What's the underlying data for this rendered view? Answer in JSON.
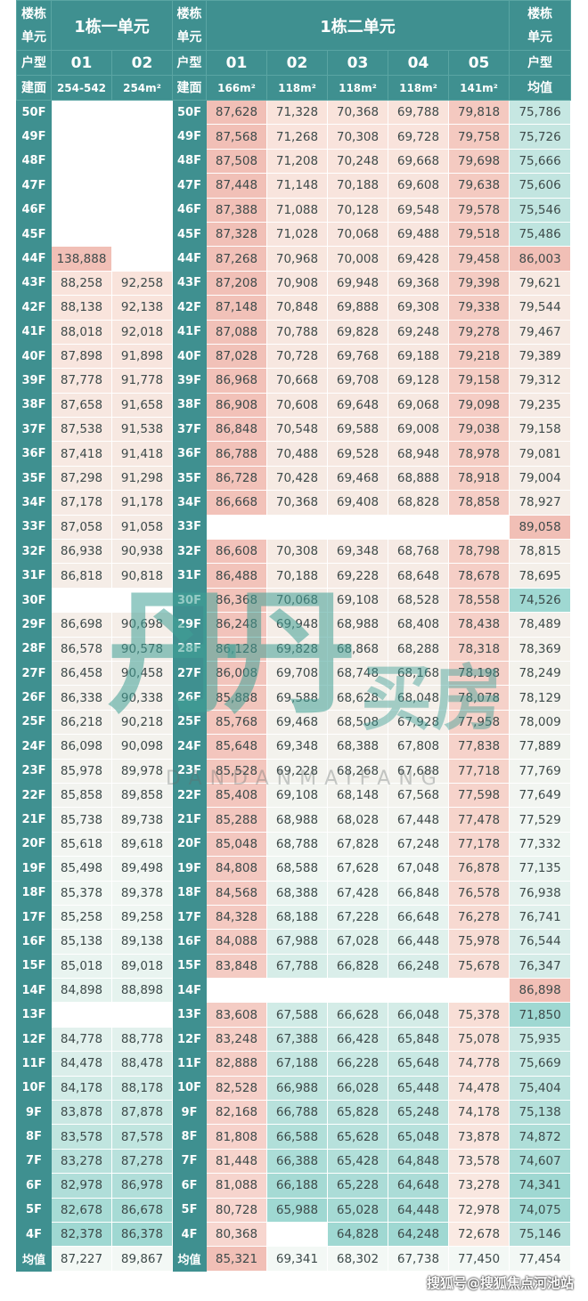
{
  "header": {
    "corner_label_top": "楼栋",
    "corner_label_bottom": "单元",
    "unit1_title": "1栋一单元",
    "unit2_title": "1栋二单元",
    "type_label": "户型",
    "area_label": "建面",
    "avg_label": "均值",
    "unit1_types": [
      "01",
      "02"
    ],
    "unit1_areas": [
      "254-542",
      "254m²"
    ],
    "unit2_types": [
      "01",
      "02",
      "03",
      "04",
      "05"
    ],
    "unit2_areas": [
      "166m²",
      "118m²",
      "118m²",
      "118m²",
      "141m²"
    ]
  },
  "colors": {
    "header": "#3f9090",
    "teal": "#9fd8d2",
    "light": "#f1f7f3",
    "pink": "#f1bfb6"
  },
  "rows": [
    {
      "floor": "50F",
      "u1": [
        null,
        null
      ],
      "u2": [
        "87,628",
        "71,328",
        "70,368",
        "69,788",
        "79,818"
      ],
      "avg": "75,786"
    },
    {
      "floor": "49F",
      "u1": [
        null,
        null
      ],
      "u2": [
        "87,568",
        "71,268",
        "70,308",
        "69,728",
        "79,758"
      ],
      "avg": "75,726"
    },
    {
      "floor": "48F",
      "u1": [
        null,
        null
      ],
      "u2": [
        "87,508",
        "71,208",
        "70,248",
        "69,668",
        "79,698"
      ],
      "avg": "75,666"
    },
    {
      "floor": "47F",
      "u1": [
        null,
        null
      ],
      "u2": [
        "87,448",
        "71,148",
        "70,188",
        "69,608",
        "79,638"
      ],
      "avg": "75,606"
    },
    {
      "floor": "46F",
      "u1": [
        null,
        null
      ],
      "u2": [
        "87,388",
        "71,088",
        "70,128",
        "69,548",
        "79,578"
      ],
      "avg": "75,546"
    },
    {
      "floor": "45F",
      "u1": [
        null,
        null
      ],
      "u2": [
        "87,328",
        "71,028",
        "70,068",
        "69,488",
        "79,518"
      ],
      "avg": "75,486"
    },
    {
      "floor": "44F",
      "u1": [
        "138,888",
        null
      ],
      "u2": [
        "87,268",
        "70,968",
        "70,008",
        "69,428",
        "79,458"
      ],
      "avg": "86,003"
    },
    {
      "floor": "43F",
      "u1": [
        "88,258",
        "92,258"
      ],
      "u2": [
        "87,208",
        "70,908",
        "69,948",
        "69,368",
        "79,398"
      ],
      "avg": "79,621"
    },
    {
      "floor": "42F",
      "u1": [
        "88,138",
        "92,138"
      ],
      "u2": [
        "87,148",
        "70,848",
        "69,888",
        "69,308",
        "79,338"
      ],
      "avg": "79,544"
    },
    {
      "floor": "41F",
      "u1": [
        "88,018",
        "92,018"
      ],
      "u2": [
        "87,088",
        "70,788",
        "69,828",
        "69,248",
        "79,278"
      ],
      "avg": "79,467"
    },
    {
      "floor": "40F",
      "u1": [
        "87,898",
        "91,898"
      ],
      "u2": [
        "87,028",
        "70,728",
        "69,768",
        "69,188",
        "79,218"
      ],
      "avg": "79,389"
    },
    {
      "floor": "39F",
      "u1": [
        "87,778",
        "91,778"
      ],
      "u2": [
        "86,968",
        "70,668",
        "69,708",
        "69,128",
        "79,158"
      ],
      "avg": "79,312"
    },
    {
      "floor": "38F",
      "u1": [
        "87,658",
        "91,658"
      ],
      "u2": [
        "86,908",
        "70,608",
        "69,648",
        "69,068",
        "79,098"
      ],
      "avg": "79,235"
    },
    {
      "floor": "37F",
      "u1": [
        "87,538",
        "91,538"
      ],
      "u2": [
        "86,848",
        "70,548",
        "69,588",
        "69,008",
        "79,038"
      ],
      "avg": "79,158"
    },
    {
      "floor": "36F",
      "u1": [
        "87,418",
        "91,418"
      ],
      "u2": [
        "86,788",
        "70,488",
        "69,528",
        "68,948",
        "78,978"
      ],
      "avg": "79,081"
    },
    {
      "floor": "35F",
      "u1": [
        "87,298",
        "91,298"
      ],
      "u2": [
        "86,728",
        "70,428",
        "69,468",
        "68,888",
        "78,918"
      ],
      "avg": "79,004"
    },
    {
      "floor": "34F",
      "u1": [
        "87,178",
        "91,178"
      ],
      "u2": [
        "86,668",
        "70,368",
        "69,408",
        "68,828",
        "78,858"
      ],
      "avg": "78,927"
    },
    {
      "floor": "33F",
      "u1": [
        "87,058",
        "91,058"
      ],
      "u2": [
        null,
        null,
        null,
        null,
        null
      ],
      "avg": "89,058"
    },
    {
      "floor": "32F",
      "u1": [
        "86,938",
        "90,938"
      ],
      "u2": [
        "86,608",
        "70,308",
        "69,348",
        "68,768",
        "78,798"
      ],
      "avg": "78,815"
    },
    {
      "floor": "31F",
      "u1": [
        "86,818",
        "90,818"
      ],
      "u2": [
        "86,488",
        "70,188",
        "69,228",
        "68,648",
        "78,678"
      ],
      "avg": "78,695"
    },
    {
      "floor": "30F",
      "u1": [
        null,
        null
      ],
      "u2": [
        "86,368",
        "70,068",
        "69,108",
        "68,528",
        "78,558"
      ],
      "avg": "74,526"
    },
    {
      "floor": "29F",
      "u1": [
        "86,698",
        "90,698"
      ],
      "u2": [
        "86,248",
        "69,948",
        "68,988",
        "68,408",
        "78,438"
      ],
      "avg": "78,489"
    },
    {
      "floor": "28F",
      "u1": [
        "86,578",
        "90,578"
      ],
      "u2": [
        "86,128",
        "69,828",
        "68,868",
        "68,288",
        "78,318"
      ],
      "avg": "78,369"
    },
    {
      "floor": "27F",
      "u1": [
        "86,458",
        "90,458"
      ],
      "u2": [
        "86,008",
        "69,708",
        "68,748",
        "68,168",
        "78,198"
      ],
      "avg": "78,249"
    },
    {
      "floor": "26F",
      "u1": [
        "86,338",
        "90,338"
      ],
      "u2": [
        "85,888",
        "69,588",
        "68,628",
        "68,048",
        "78,078"
      ],
      "avg": "78,129"
    },
    {
      "floor": "25F",
      "u1": [
        "86,218",
        "90,218"
      ],
      "u2": [
        "85,768",
        "69,468",
        "68,508",
        "67,928",
        "77,958"
      ],
      "avg": "78,009"
    },
    {
      "floor": "24F",
      "u1": [
        "86,098",
        "90,098"
      ],
      "u2": [
        "85,648",
        "69,348",
        "68,388",
        "67,808",
        "77,838"
      ],
      "avg": "77,889"
    },
    {
      "floor": "23F",
      "u1": [
        "85,978",
        "89,978"
      ],
      "u2": [
        "85,528",
        "69,228",
        "68,268",
        "67,688",
        "77,718"
      ],
      "avg": "77,769"
    },
    {
      "floor": "22F",
      "u1": [
        "85,858",
        "89,858"
      ],
      "u2": [
        "85,408",
        "69,108",
        "68,148",
        "67,568",
        "77,598"
      ],
      "avg": "77,649"
    },
    {
      "floor": "21F",
      "u1": [
        "85,738",
        "89,738"
      ],
      "u2": [
        "85,288",
        "68,988",
        "68,028",
        "67,448",
        "77,478"
      ],
      "avg": "77,529"
    },
    {
      "floor": "20F",
      "u1": [
        "85,618",
        "89,618"
      ],
      "u2": [
        "85,048",
        "68,788",
        "67,828",
        "67,248",
        "77,178"
      ],
      "avg": "77,332"
    },
    {
      "floor": "19F",
      "u1": [
        "85,498",
        "89,498"
      ],
      "u2": [
        "84,808",
        "68,588",
        "67,628",
        "67,048",
        "76,878"
      ],
      "avg": "77,135"
    },
    {
      "floor": "18F",
      "u1": [
        "85,378",
        "89,378"
      ],
      "u2": [
        "84,568",
        "68,388",
        "67,428",
        "66,848",
        "76,578"
      ],
      "avg": "76,938"
    },
    {
      "floor": "17F",
      "u1": [
        "85,258",
        "89,258"
      ],
      "u2": [
        "84,328",
        "68,188",
        "67,228",
        "66,648",
        "76,278"
      ],
      "avg": "76,741"
    },
    {
      "floor": "16F",
      "u1": [
        "85,138",
        "89,138"
      ],
      "u2": [
        "84,088",
        "67,988",
        "67,028",
        "66,448",
        "75,978"
      ],
      "avg": "76,544"
    },
    {
      "floor": "15F",
      "u1": [
        "85,018",
        "89,018"
      ],
      "u2": [
        "83,848",
        "67,788",
        "66,828",
        "66,248",
        "75,678"
      ],
      "avg": "76,347"
    },
    {
      "floor": "14F",
      "u1": [
        "84,898",
        "88,898"
      ],
      "u2": [
        null,
        null,
        null,
        null,
        null
      ],
      "avg": "86,898"
    },
    {
      "floor": "13F",
      "u1": [
        null,
        null
      ],
      "u2": [
        "83,608",
        "67,588",
        "66,628",
        "66,048",
        "75,378"
      ],
      "avg": "71,850"
    },
    {
      "floor": "12F",
      "u1": [
        "84,778",
        "88,778"
      ],
      "u2": [
        "83,248",
        "67,388",
        "66,428",
        "65,848",
        "75,078"
      ],
      "avg": "75,935"
    },
    {
      "floor": "11F",
      "u1": [
        "84,478",
        "88,478"
      ],
      "u2": [
        "82,888",
        "67,188",
        "66,228",
        "65,648",
        "74,778"
      ],
      "avg": "75,669"
    },
    {
      "floor": "10F",
      "u1": [
        "84,178",
        "88,178"
      ],
      "u2": [
        "82,528",
        "66,988",
        "66,028",
        "65,448",
        "74,478"
      ],
      "avg": "75,404"
    },
    {
      "floor": "9F",
      "u1": [
        "83,878",
        "87,878"
      ],
      "u2": [
        "82,168",
        "66,788",
        "65,828",
        "65,248",
        "74,178"
      ],
      "avg": "75,138"
    },
    {
      "floor": "8F",
      "u1": [
        "83,578",
        "87,578"
      ],
      "u2": [
        "81,808",
        "66,588",
        "65,628",
        "65,048",
        "73,878"
      ],
      "avg": "74,872"
    },
    {
      "floor": "7F",
      "u1": [
        "83,278",
        "87,278"
      ],
      "u2": [
        "81,448",
        "66,388",
        "65,428",
        "64,848",
        "73,578"
      ],
      "avg": "74,607"
    },
    {
      "floor": "6F",
      "u1": [
        "82,978",
        "86,978"
      ],
      "u2": [
        "81,088",
        "66,188",
        "65,228",
        "64,648",
        "73,278"
      ],
      "avg": "74,341"
    },
    {
      "floor": "5F",
      "u1": [
        "82,678",
        "86,678"
      ],
      "u2": [
        "80,728",
        "65,988",
        "65,028",
        "64,448",
        "72,978"
      ],
      "avg": "74,075"
    },
    {
      "floor": "4F",
      "u1": [
        "82,378",
        "86,378"
      ],
      "u2": [
        "80,368",
        null,
        "64,828",
        "64,248",
        "72,678"
      ],
      "avg": "75,146"
    }
  ],
  "average_row": {
    "label": "均值",
    "u1": [
      "87,227",
      "89,867"
    ],
    "u2": [
      "85,321",
      "69,341",
      "68,302",
      "67,738",
      "77,450"
    ],
    "avg": "77,454"
  },
  "watermark": {
    "logo": "丹丹买房",
    "logo_latin": "DANDANMAIFANG",
    "source": "搜狐号@搜狐焦点河池站"
  }
}
